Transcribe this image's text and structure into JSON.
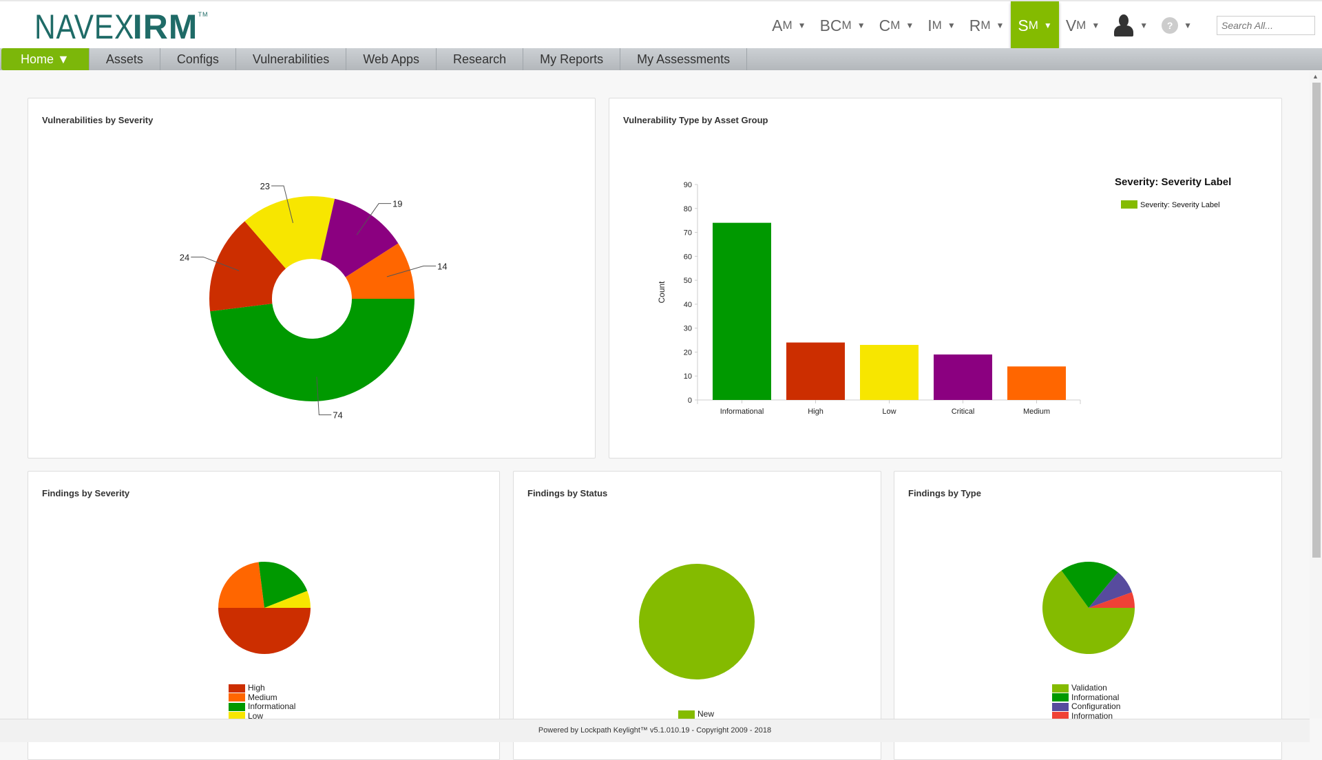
{
  "header": {
    "logo_text": "NAVEX",
    "logo_bold": "IRM",
    "logo_tm": "TM",
    "modules": [
      {
        "big": "A",
        "small": "M",
        "active": false
      },
      {
        "big": "BC",
        "small": "M",
        "active": false
      },
      {
        "big": "C",
        "small": "M",
        "active": false
      },
      {
        "big": "I",
        "small": "M",
        "active": false
      },
      {
        "big": "R",
        "small": "M",
        "active": false
      },
      {
        "big": "S",
        "small": "M",
        "active": true
      },
      {
        "big": "V",
        "small": "M",
        "active": false
      }
    ],
    "caret": "▼",
    "help_label": "?",
    "search_placeholder": "Search All..."
  },
  "nav": {
    "items": [
      "Home ▼",
      "Assets",
      "Configs",
      "Vulnerabilities",
      "Web Apps",
      "Research",
      "My Reports",
      "My Assessments"
    ],
    "active": 0
  },
  "cards": {
    "vuln_by_severity": {
      "title": "Vulnerabilities by Severity"
    },
    "vuln_type": {
      "title": "Vulnerability Type by Asset Group"
    },
    "findings_severity": {
      "title": "Findings by Severity"
    },
    "findings_status": {
      "title": "Findings by Status"
    },
    "findings_type": {
      "title": "Findings by Type"
    }
  },
  "chart_data": [
    {
      "type": "pie",
      "variant": "donut",
      "title": "Vulnerabilities by Severity",
      "categories": [
        "Informational",
        "High",
        "Low",
        "Critical",
        "Medium"
      ],
      "values": [
        74,
        24,
        23,
        19,
        14
      ],
      "colors": [
        "#009900",
        "#cc2e00",
        "#f7e600",
        "#8b0080",
        "#ff6600"
      ],
      "data_labels": [
        "74",
        "24",
        "23",
        "19",
        "14"
      ]
    },
    {
      "type": "bar",
      "title": "Vulnerability Type by Asset Group",
      "categories": [
        "Informational",
        "High",
        "Low",
        "Critical",
        "Medium"
      ],
      "values": [
        74,
        24,
        23,
        19,
        14
      ],
      "colors": [
        "#009900",
        "#cc2e00",
        "#f7e600",
        "#8b0080",
        "#ff6600"
      ],
      "ylabel": "Count",
      "ylim": [
        0,
        90
      ],
      "yticks": [
        0,
        10,
        20,
        30,
        40,
        50,
        60,
        70,
        80,
        90
      ],
      "legend": {
        "title": "Severity: Severity Label",
        "entries": [
          "Severity: Severity Label"
        ],
        "color": "#84bb00",
        "position": "top-right"
      }
    },
    {
      "type": "pie",
      "title": "Findings by Severity",
      "categories": [
        "High",
        "Medium",
        "Informational",
        "Low"
      ],
      "values": [
        50,
        23,
        21,
        6
      ],
      "colors": [
        "#cc2e00",
        "#ff6600",
        "#009900",
        "#f7e600"
      ],
      "legend_position": "bottom"
    },
    {
      "type": "pie",
      "title": "Findings by Status",
      "categories": [
        "New"
      ],
      "values": [
        100
      ],
      "colors": [
        "#84bb00"
      ],
      "legend_position": "bottom"
    },
    {
      "type": "pie",
      "title": "Findings by Type",
      "categories": [
        "Validation",
        "Informational",
        "Configuration",
        "Information"
      ],
      "values": [
        65,
        21,
        8.5,
        5.5
      ],
      "colors": [
        "#84bb00",
        "#009900",
        "#574b9e",
        "#ef4136"
      ],
      "legend_position": "bottom"
    }
  ],
  "footer": {
    "text": "Powered by Lockpath Keylight™ v5.1.010.19 - Copyright 2009 - 2018"
  }
}
